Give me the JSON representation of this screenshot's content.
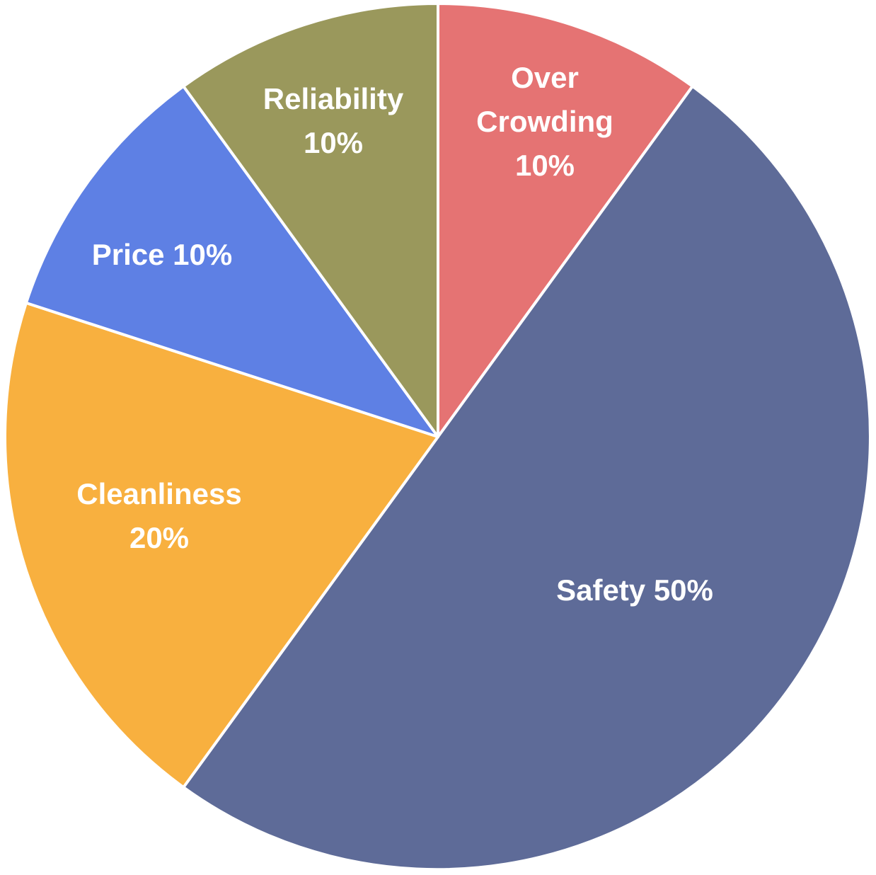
{
  "chart_data": {
    "type": "pie",
    "title": "",
    "slices": [
      {
        "label": "Over Crowding",
        "value": 10,
        "display_lines": [
          "Over",
          "Crowding",
          "10%"
        ],
        "color": "#e57373"
      },
      {
        "label": "Safety",
        "value": 50,
        "display_lines": [
          "Safety 50%"
        ],
        "color": "#5e6b98"
      },
      {
        "label": "Cleanliness",
        "value": 20,
        "display_lines": [
          "Cleanliness",
          "20%"
        ],
        "color": "#f8b03f"
      },
      {
        "label": "Price",
        "value": 10,
        "display_lines": [
          "Price 10%"
        ],
        "color": "#5e80e4"
      },
      {
        "label": "Reliability",
        "value": 10,
        "display_lines": [
          "Reliability",
          "10%"
        ],
        "color": "#9a985c"
      }
    ],
    "start_angle": "12 o'clock",
    "direction": "clockwise",
    "legend": "none",
    "unit": "%"
  }
}
